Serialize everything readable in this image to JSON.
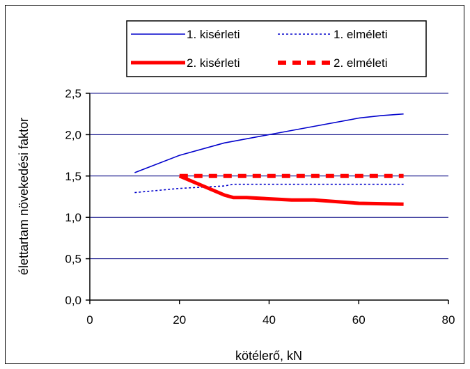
{
  "chart_data": {
    "type": "line",
    "title": "",
    "xlabel": "kötélerő, kN",
    "ylabel": "élettartam növekedési faktor",
    "xlim": [
      0,
      80
    ],
    "ylim": [
      0,
      2.5
    ],
    "xticks": [
      0,
      20,
      40,
      60,
      80
    ],
    "yticks": [
      0.0,
      0.5,
      1.0,
      1.5,
      2.0,
      2.5
    ],
    "xtick_labels": [
      "0",
      "20",
      "40",
      "60",
      "80"
    ],
    "ytick_labels": [
      "0,0",
      "0,5",
      "1,0",
      "1,5",
      "2,0",
      "2,5"
    ],
    "grid": "horizontal",
    "legend_position": "top",
    "series": [
      {
        "name": "1. kisérleti",
        "style": "solid-thin",
        "color": "#0000cc",
        "x": [
          10,
          20,
          30,
          40,
          50,
          60,
          65,
          70
        ],
        "y": [
          1.54,
          1.75,
          1.9,
          2.0,
          2.1,
          2.2,
          2.23,
          2.25
        ]
      },
      {
        "name": "1. elméleti",
        "style": "dotted-thin",
        "color": "#0000cc",
        "x": [
          10,
          20,
          30,
          32,
          40,
          50,
          60,
          70
        ],
        "y": [
          1.3,
          1.35,
          1.38,
          1.4,
          1.4,
          1.4,
          1.4,
          1.4
        ]
      },
      {
        "name": "2. kisérleti",
        "style": "solid-thick",
        "color": "#ff0000",
        "x": [
          20,
          30,
          32,
          35,
          45,
          50,
          60,
          70
        ],
        "y": [
          1.5,
          1.27,
          1.24,
          1.24,
          1.21,
          1.21,
          1.17,
          1.16
        ]
      },
      {
        "name": "2. elméleti",
        "style": "dashed-thick",
        "color": "#ff0000",
        "x": [
          20,
          70
        ],
        "y": [
          1.5,
          1.5
        ]
      }
    ]
  }
}
